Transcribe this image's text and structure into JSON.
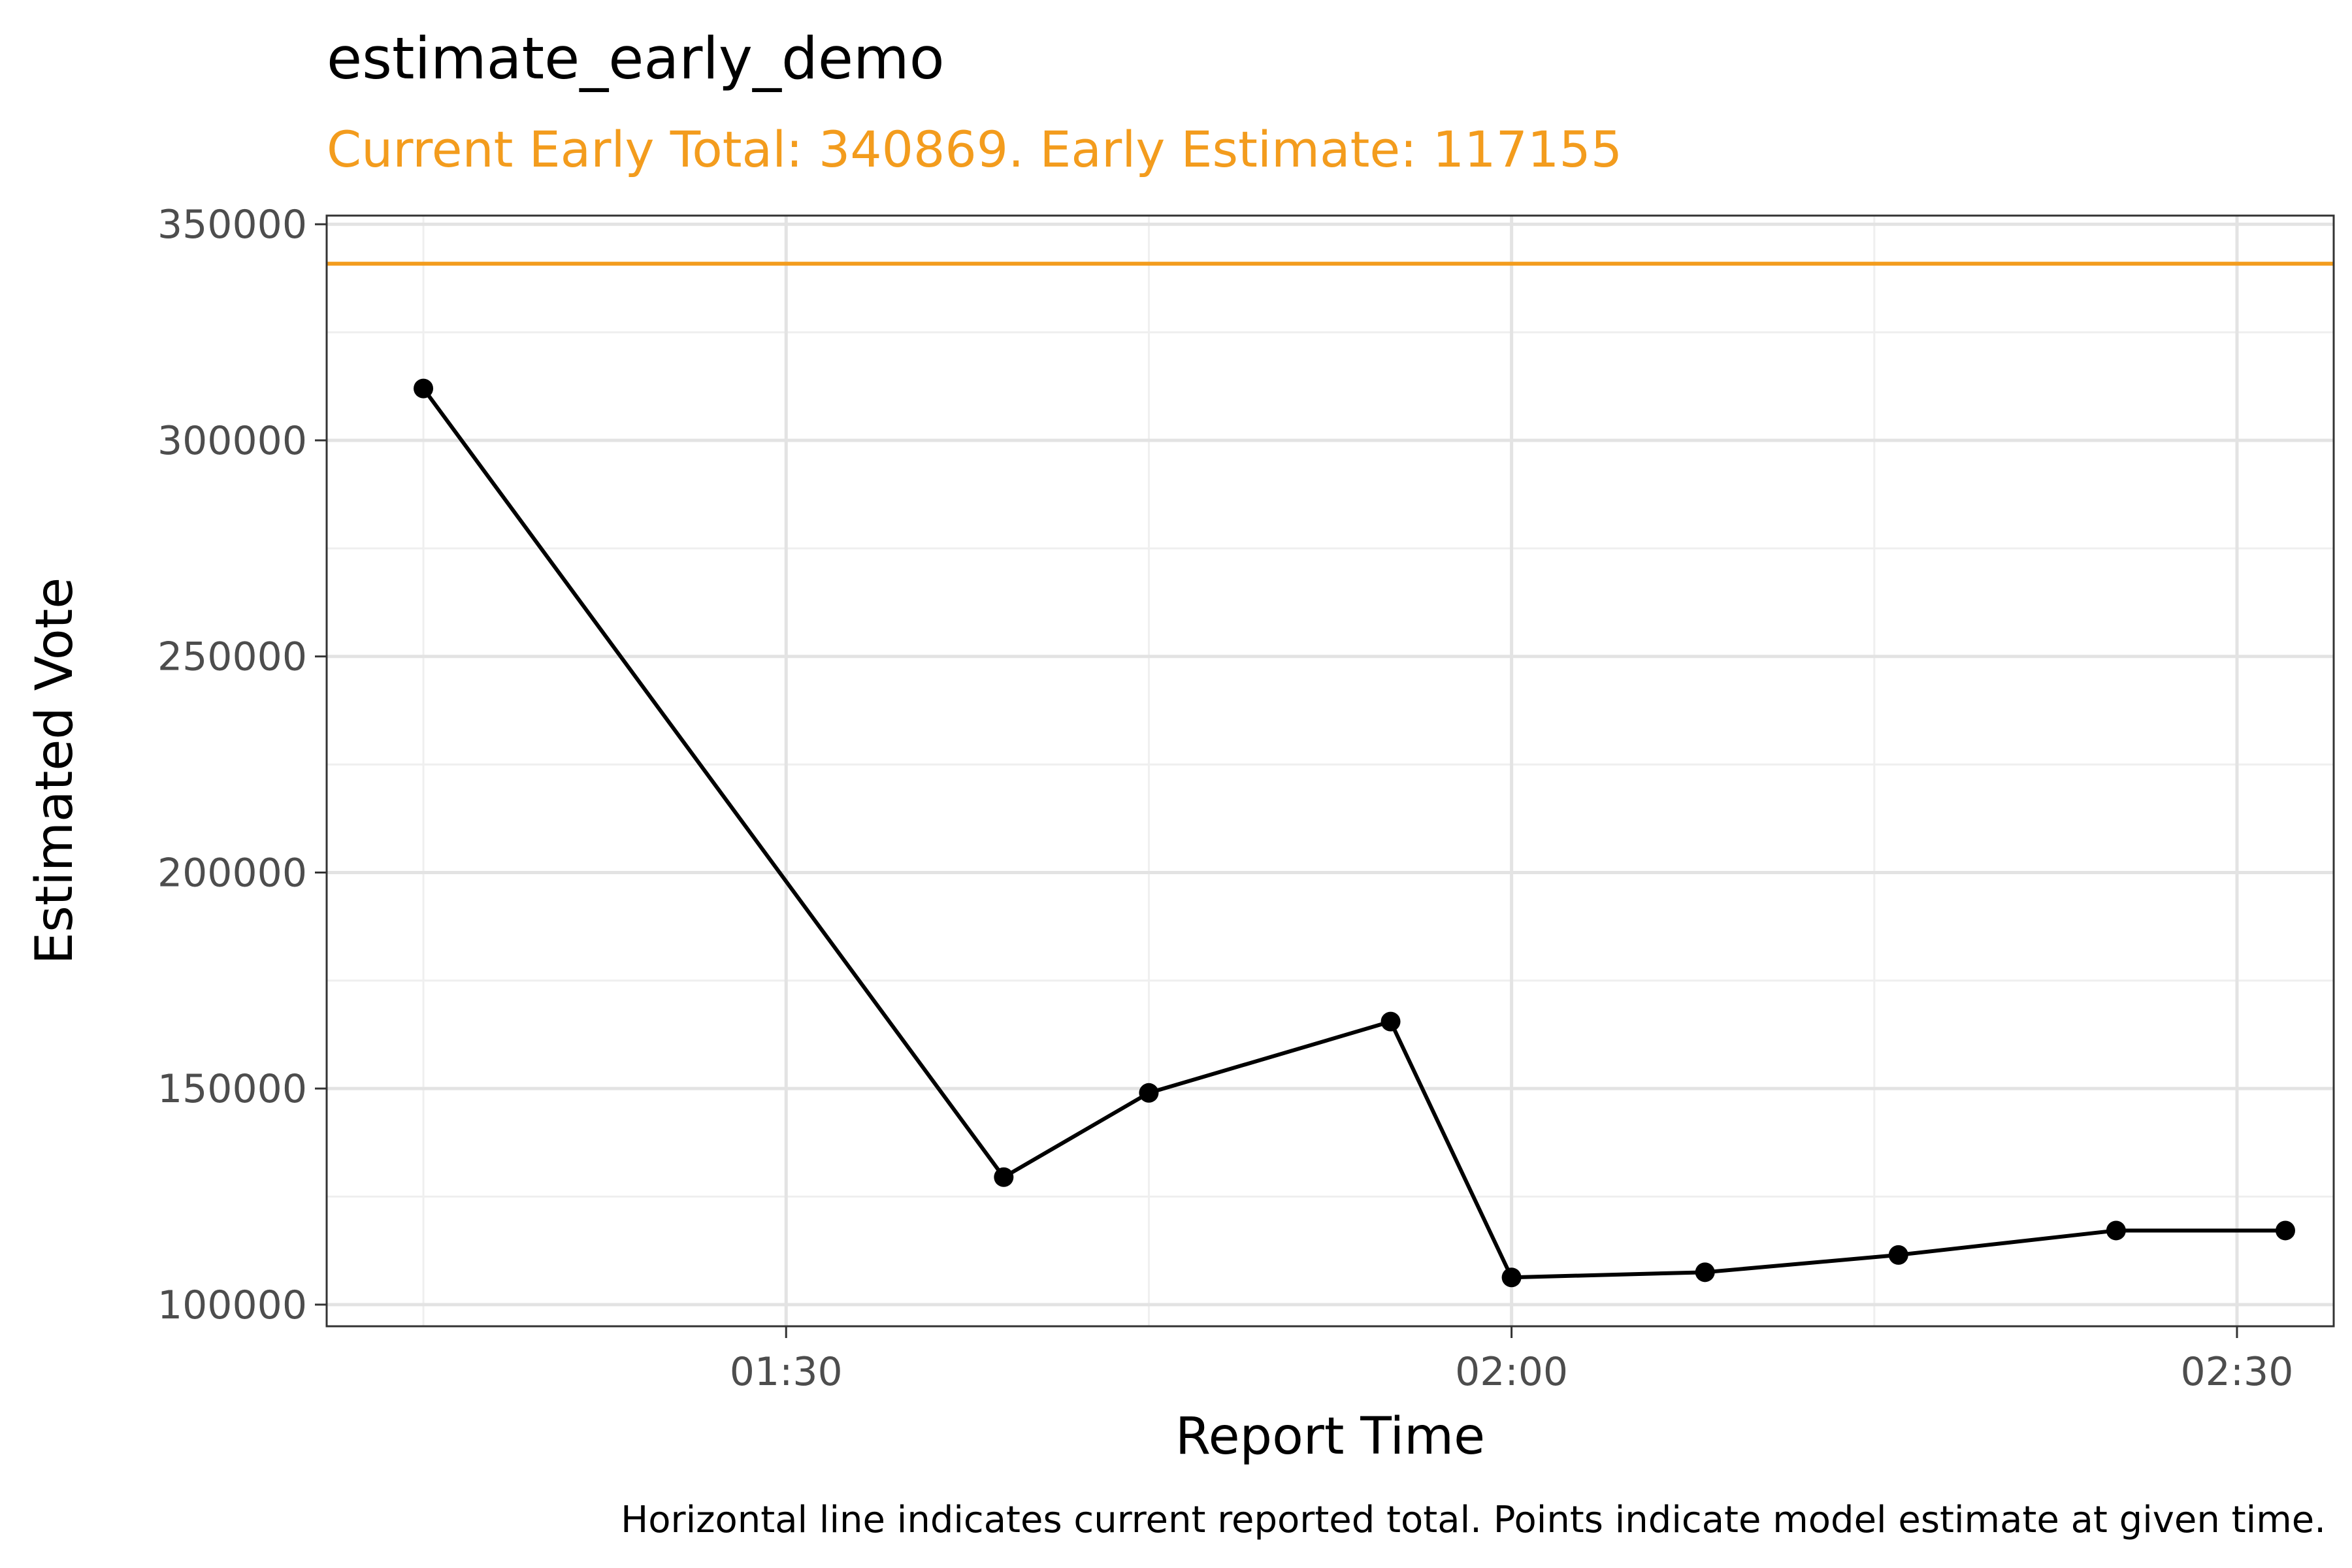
{
  "chart_data": {
    "type": "line",
    "title": "estimate_early_demo",
    "subtitle": "Current Early Total: 340869. Early Estimate: 117155",
    "xlabel": "Report Time",
    "ylabel": "Estimated Vote",
    "caption": "Horizontal line indicates current reported total. Points indicate model estimate at given time.",
    "x_time_range": [
      "01:11",
      "02:34"
    ],
    "ylim": [
      95000,
      352000
    ],
    "x_ticks": [
      "01:30",
      "02:00",
      "02:30"
    ],
    "y_ticks": [
      100000,
      150000,
      200000,
      250000,
      300000,
      350000
    ],
    "y_tick_labels": [
      "100000",
      "150000",
      "200000",
      "250000",
      "300000",
      "350000"
    ],
    "reference_line": {
      "y": 340869,
      "color": "#F39C1D"
    },
    "series": [
      {
        "color": "#000000",
        "points": [
          {
            "x": "01:15",
            "y": 312000
          },
          {
            "x": "01:39",
            "y": 129500
          },
          {
            "x": "01:45",
            "y": 149000
          },
          {
            "x": "01:55",
            "y": 165500
          },
          {
            "x": "02:00",
            "y": 106300
          },
          {
            "x": "02:08",
            "y": 107500
          },
          {
            "x": "02:16",
            "y": 111500
          },
          {
            "x": "02:25",
            "y": 117155
          },
          {
            "x": "02:32",
            "y": 117155
          }
        ]
      }
    ],
    "grid": true
  }
}
